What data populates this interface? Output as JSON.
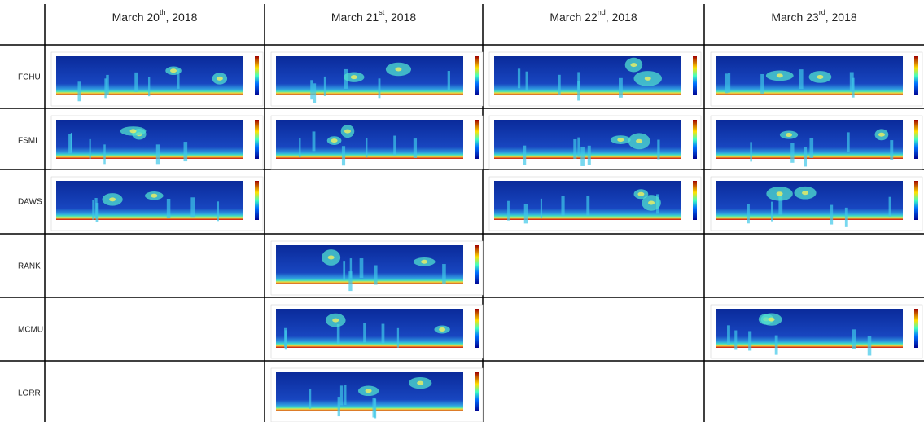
{
  "table": {
    "columns": [
      {
        "day": "March 20",
        "suffix": "th",
        "year": ", 2018"
      },
      {
        "day": "March 21",
        "suffix": "st",
        "year": ", 2018"
      },
      {
        "day": "March 22",
        "suffix": "nd",
        "year": ", 2018"
      },
      {
        "day": "March 23",
        "suffix": "rd",
        "year": ", 2018"
      }
    ],
    "rows": [
      "FCHU",
      "FSMI",
      "DAWS",
      "RANK",
      "MCMU",
      "LGRR"
    ]
  }
}
